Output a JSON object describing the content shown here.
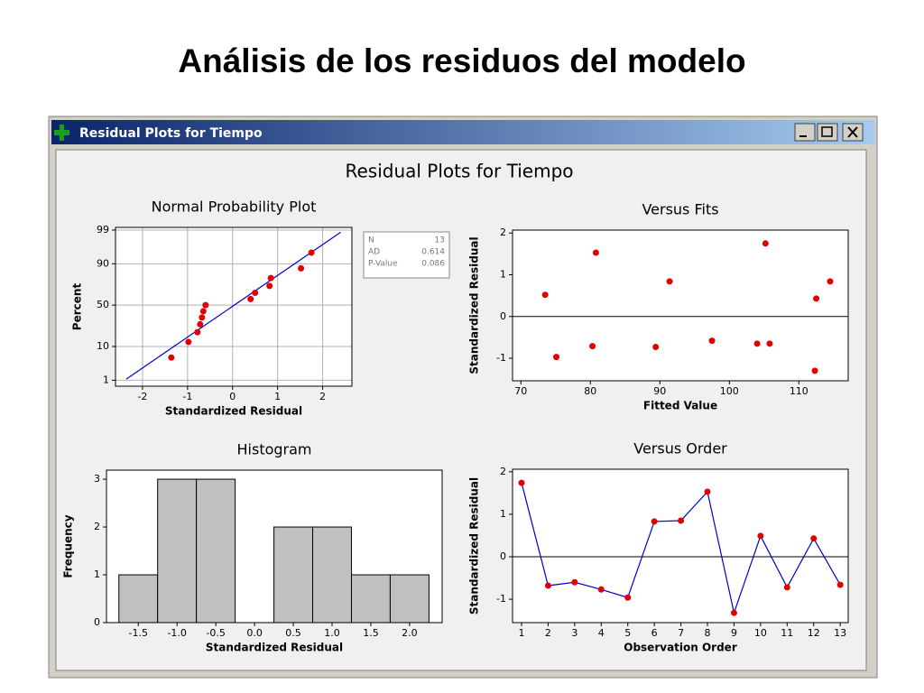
{
  "slide_title": "Análisis de los residuos del modelo",
  "window_title": "Residual Plots for Tiempo",
  "figure_title": "Residual Plots for Tiempo",
  "chart_data": [
    {
      "type": "scatter",
      "title": "Normal Probability Plot",
      "xlabel": "Standardized Residual",
      "ylabel": "Percent",
      "yscale": "probability",
      "grid": true,
      "color": "#e00000",
      "x": [
        -1.36,
        -0.98,
        -0.78,
        -0.72,
        -0.68,
        -0.65,
        -0.6,
        0.4,
        0.5,
        0.82,
        0.85,
        1.52,
        1.75
      ],
      "values": [
        5.2,
        12.7,
        20.1,
        27.6,
        35.1,
        42.5,
        50.0,
        57.5,
        64.9,
        72.4,
        79.9,
        87.3,
        94.8
      ],
      "fit": {
        "x": [
          -2.36,
          2.4
        ],
        "values": [
          1.1,
          98.8
        ],
        "color": "#0000cc"
      },
      "xlim": [
        -2.6,
        2.65
      ],
      "xticks": [
        -2,
        -1,
        0,
        1,
        2
      ],
      "ylim": [
        0.6,
        99.2
      ],
      "yticks": [
        1,
        10,
        50,
        90,
        99
      ],
      "stats": [
        {
          "label": "N",
          "value": 13
        },
        {
          "label": "AD",
          "value": 0.614
        },
        {
          "label": "P-Value",
          "value": 0.086
        }
      ]
    },
    {
      "type": "scatter",
      "title": "Versus Fits",
      "xlabel": "Fitted Value",
      "ylabel": "Standardized Residual",
      "grid": false,
      "color": "#e00000",
      "reference_line": 0,
      "x": [
        73.5,
        75.1,
        80.3,
        80.8,
        89.4,
        91.4,
        97.5,
        104.0,
        105.2,
        105.8,
        112.5,
        112.3,
        114.5
      ],
      "values": [
        0.52,
        -0.97,
        -0.71,
        1.53,
        -0.73,
        0.84,
        -0.58,
        -0.65,
        1.75,
        -0.65,
        0.43,
        -1.3,
        0.84
      ],
      "xlim": [
        68.8,
        117.1
      ],
      "xticks": [
        70,
        80,
        90,
        100,
        110
      ],
      "ylim": [
        -1.54,
        2.07
      ],
      "yticks": [
        -1,
        0,
        1,
        2
      ]
    },
    {
      "type": "histogram",
      "title": "Histogram",
      "xlabel": "Standardized Residual",
      "ylabel": "Frequency",
      "color": "#c0c0c0",
      "bins": [
        -1.75,
        -1.25,
        -0.75,
        -0.25,
        0.25,
        0.75,
        1.25,
        1.75,
        2.25
      ],
      "values": [
        1,
        3,
        3,
        0,
        2,
        2,
        1,
        1
      ],
      "xlim": [
        -1.91,
        2.42
      ],
      "xticks": [
        -1.5,
        {
          "value": -1,
          "label": "-1.0"
        },
        -0.5,
        {
          "value": 0,
          "label": "0.0"
        },
        0.5,
        {
          "value": 1,
          "label": "1.0"
        },
        1.5,
        {
          "value": 2,
          "label": "2.0"
        }
      ],
      "ylim": [
        0,
        3.19
      ],
      "yticks": [
        0,
        1,
        2,
        3
      ]
    },
    {
      "type": "line",
      "title": "Versus Order",
      "xlabel": "Observation Order",
      "ylabel": "Standardized Residual",
      "color": "#0000cc",
      "marker_color": "#e00000",
      "reference_line": 0,
      "x": [
        1,
        2,
        3,
        4,
        5,
        6,
        7,
        8,
        9,
        10,
        11,
        12,
        13
      ],
      "values": [
        1.74,
        -0.68,
        -0.6,
        -0.77,
        -0.96,
        0.83,
        0.85,
        1.53,
        -1.32,
        0.49,
        -0.72,
        0.43,
        -0.66
      ],
      "xlim": [
        0.66,
        13.3
      ],
      "xticks": [
        1,
        2,
        3,
        4,
        5,
        6,
        7,
        8,
        9,
        10,
        11,
        12,
        13
      ],
      "ylim": [
        -1.55,
        2.06
      ],
      "yticks": [
        -1,
        0,
        1,
        2
      ]
    }
  ]
}
